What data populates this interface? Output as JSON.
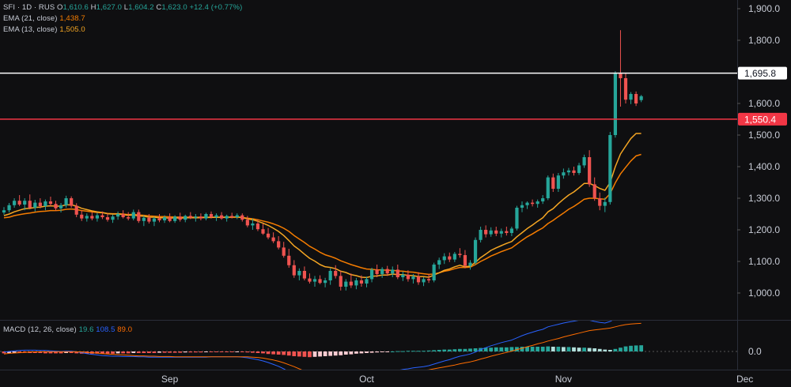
{
  "header": {
    "symbol": "SFI · 1D · RUS",
    "o_label": "O",
    "o": "1,610.6",
    "h_label": "H",
    "h": "1,627.0",
    "l_label": "L",
    "l": "1,604.2",
    "c_label": "C",
    "c": "1,623.0",
    "change": "+12.4 (+0.77%)"
  },
  "ema21": {
    "label": "EMA (21, close)",
    "value": "1,438.7"
  },
  "ema13": {
    "label": "EMA (13, close)",
    "value": "1,505.0"
  },
  "macd": {
    "label": "MACD (12, 26, close)",
    "hist": "19.6",
    "macd": "108.5",
    "signal": "89.0",
    "zero_label": "0.0"
  },
  "colors": {
    "up": "#26a69a",
    "down": "#ef5350",
    "ema21": "#f57c00",
    "ema13": "#f5a623",
    "macd_line": "#2962ff",
    "signal_line": "#ff6d00",
    "white_line": "#ffffff",
    "red_line": "#f23645"
  },
  "chart_data": {
    "type": "candlestick",
    "y_ticks": [
      "1,900.0",
      "1,800.0",
      "1,700.0",
      "1,600.0",
      "1,500.0",
      "1,400.0",
      "1,300.0",
      "1,200.0",
      "1,100.0",
      "1,000.0"
    ],
    "y_tick_values": [
      1900,
      1800,
      1700,
      1600,
      1500,
      1400,
      1300,
      1200,
      1100,
      1000
    ],
    "x_ticks": [
      {
        "label": "Sep",
        "candle_index": 32
      },
      {
        "label": "Oct",
        "candle_index": 70
      },
      {
        "label": "Nov",
        "candle_index": 108
      },
      {
        "label": "Dec",
        "candle_index": 143
      }
    ],
    "hlines": [
      {
        "value": 1695.8,
        "label": "1,695.8",
        "color": "#ffffff"
      },
      {
        "value": 1550.4,
        "label": "1,550.4",
        "color": "#f23645"
      }
    ],
    "ohlc": [
      [
        1255,
        1272,
        1248,
        1262
      ],
      [
        1262,
        1285,
        1255,
        1278
      ],
      [
        1278,
        1300,
        1270,
        1292
      ],
      [
        1292,
        1310,
        1275,
        1280
      ],
      [
        1280,
        1300,
        1262,
        1292
      ],
      [
        1292,
        1312,
        1265,
        1270
      ],
      [
        1270,
        1295,
        1258,
        1286
      ],
      [
        1286,
        1300,
        1268,
        1275
      ],
      [
        1275,
        1296,
        1262,
        1290
      ],
      [
        1290,
        1305,
        1275,
        1282
      ],
      [
        1282,
        1292,
        1260,
        1268
      ],
      [
        1268,
        1285,
        1255,
        1278
      ],
      [
        1278,
        1308,
        1270,
        1300
      ],
      [
        1300,
        1306,
        1270,
        1276
      ],
      [
        1276,
        1284,
        1240,
        1248
      ],
      [
        1248,
        1262,
        1228,
        1236
      ],
      [
        1236,
        1252,
        1226,
        1244
      ],
      [
        1244,
        1256,
        1230,
        1236
      ],
      [
        1236,
        1254,
        1226,
        1246
      ],
      [
        1246,
        1258,
        1234,
        1240
      ],
      [
        1240,
        1252,
        1226,
        1232
      ],
      [
        1232,
        1248,
        1222,
        1242
      ],
      [
        1242,
        1258,
        1232,
        1250
      ],
      [
        1250,
        1262,
        1236,
        1240
      ],
      [
        1240,
        1256,
        1230,
        1236
      ],
      [
        1236,
        1264,
        1230,
        1256
      ],
      [
        1256,
        1264,
        1222,
        1228
      ],
      [
        1228,
        1246,
        1212,
        1238
      ],
      [
        1238,
        1250,
        1220,
        1226
      ],
      [
        1226,
        1242,
        1212,
        1236
      ],
      [
        1236,
        1250,
        1224,
        1230
      ],
      [
        1230,
        1246,
        1222,
        1240
      ],
      [
        1240,
        1252,
        1224,
        1228
      ],
      [
        1228,
        1246,
        1222,
        1242
      ],
      [
        1242,
        1254,
        1226,
        1232
      ],
      [
        1232,
        1248,
        1224,
        1244
      ],
      [
        1244,
        1256,
        1234,
        1238
      ],
      [
        1238,
        1250,
        1226,
        1242
      ],
      [
        1242,
        1252,
        1230,
        1236
      ],
      [
        1236,
        1254,
        1230,
        1250
      ],
      [
        1250,
        1258,
        1236,
        1240
      ],
      [
        1240,
        1252,
        1228,
        1246
      ],
      [
        1246,
        1256,
        1232,
        1236
      ],
      [
        1236,
        1248,
        1226,
        1244
      ],
      [
        1244,
        1254,
        1236,
        1240
      ],
      [
        1240,
        1252,
        1234,
        1246
      ],
      [
        1246,
        1252,
        1226,
        1232
      ],
      [
        1232,
        1244,
        1208,
        1214
      ],
      [
        1214,
        1236,
        1200,
        1220
      ],
      [
        1220,
        1232,
        1196,
        1202
      ],
      [
        1202,
        1220,
        1184,
        1188
      ],
      [
        1188,
        1206,
        1170,
        1176
      ],
      [
        1176,
        1192,
        1158,
        1164
      ],
      [
        1164,
        1180,
        1138,
        1144
      ],
      [
        1144,
        1162,
        1112,
        1118
      ],
      [
        1118,
        1140,
        1080,
        1088
      ],
      [
        1088,
        1104,
        1048,
        1056
      ],
      [
        1056,
        1078,
        1040,
        1070
      ],
      [
        1070,
        1084,
        1040,
        1046
      ],
      [
        1046,
        1062,
        1030,
        1036
      ],
      [
        1036,
        1054,
        1020,
        1044
      ],
      [
        1044,
        1056,
        1028,
        1032
      ],
      [
        1032,
        1048,
        1018,
        1040
      ],
      [
        1040,
        1078,
        1026,
        1070
      ],
      [
        1070,
        1088,
        1046,
        1054
      ],
      [
        1054,
        1070,
        1008,
        1020
      ],
      [
        1020,
        1044,
        1008,
        1036
      ],
      [
        1036,
        1062,
        1016,
        1024
      ],
      [
        1024,
        1048,
        1012,
        1040
      ],
      [
        1040,
        1056,
        1020,
        1030
      ],
      [
        1030,
        1052,
        1018,
        1044
      ],
      [
        1044,
        1080,
        1034,
        1074
      ],
      [
        1074,
        1090,
        1050,
        1060
      ],
      [
        1060,
        1082,
        1048,
        1076
      ],
      [
        1076,
        1086,
        1054,
        1062
      ],
      [
        1062,
        1084,
        1050,
        1074
      ],
      [
        1074,
        1090,
        1044,
        1050
      ],
      [
        1050,
        1068,
        1038,
        1058
      ],
      [
        1058,
        1072,
        1036,
        1044
      ],
      [
        1044,
        1060,
        1030,
        1052
      ],
      [
        1052,
        1066,
        1026,
        1034
      ],
      [
        1034,
        1050,
        1022,
        1044
      ],
      [
        1044,
        1060,
        1032,
        1040
      ],
      [
        1040,
        1096,
        1034,
        1090
      ],
      [
        1090,
        1112,
        1076,
        1104
      ],
      [
        1104,
        1126,
        1092,
        1116
      ],
      [
        1116,
        1128,
        1098,
        1106
      ],
      [
        1106,
        1130,
        1098,
        1124
      ],
      [
        1124,
        1142,
        1112,
        1120
      ],
      [
        1120,
        1136,
        1078,
        1086
      ],
      [
        1086,
        1104,
        1074,
        1096
      ],
      [
        1096,
        1176,
        1090,
        1168
      ],
      [
        1168,
        1210,
        1160,
        1200
      ],
      [
        1200,
        1214,
        1176,
        1186
      ],
      [
        1186,
        1208,
        1178,
        1198
      ],
      [
        1198,
        1210,
        1180,
        1188
      ],
      [
        1188,
        1204,
        1176,
        1196
      ],
      [
        1196,
        1210,
        1182,
        1190
      ],
      [
        1190,
        1210,
        1180,
        1204
      ],
      [
        1204,
        1276,
        1198,
        1270
      ],
      [
        1270,
        1290,
        1256,
        1278
      ],
      [
        1278,
        1290,
        1266,
        1286
      ],
      [
        1286,
        1296,
        1274,
        1282
      ],
      [
        1282,
        1296,
        1270,
        1290
      ],
      [
        1290,
        1310,
        1282,
        1300
      ],
      [
        1300,
        1372,
        1294,
        1366
      ],
      [
        1366,
        1378,
        1320,
        1330
      ],
      [
        1330,
        1380,
        1320,
        1372
      ],
      [
        1372,
        1394,
        1362,
        1382
      ],
      [
        1382,
        1396,
        1372,
        1388
      ],
      [
        1388,
        1400,
        1372,
        1380
      ],
      [
        1380,
        1412,
        1374,
        1404
      ],
      [
        1404,
        1438,
        1396,
        1430
      ],
      [
        1430,
        1452,
        1336,
        1344
      ],
      [
        1344,
        1366,
        1292,
        1300
      ],
      [
        1300,
        1318,
        1262,
        1276
      ],
      [
        1276,
        1302,
        1256,
        1288
      ],
      [
        1288,
        1510,
        1280,
        1500
      ],
      [
        1500,
        1702,
        1492,
        1694
      ],
      [
        1694,
        1832,
        1590,
        1680
      ],
      [
        1680,
        1696,
        1600,
        1612
      ],
      [
        1612,
        1636,
        1598,
        1630
      ],
      [
        1630,
        1638,
        1592,
        1600
      ],
      [
        1610.6,
        1627.0,
        1604.2,
        1623.0
      ]
    ],
    "ema21": [
      1238,
      1240,
      1245,
      1248,
      1251,
      1253,
      1256,
      1258,
      1259,
      1261,
      1261,
      1262,
      1265,
      1266,
      1264,
      1261,
      1259,
      1257,
      1255,
      1254,
      1252,
      1251,
      1251,
      1250,
      1248,
      1249,
      1247,
      1246,
      1244,
      1243,
      1242,
      1242,
      1241,
      1241,
      1240,
      1240,
      1240,
      1240,
      1240,
      1240,
      1240,
      1240,
      1240,
      1240,
      1240,
      1240,
      1239,
      1237,
      1235,
      1232,
      1228,
      1224,
      1219,
      1213,
      1205,
      1195,
      1182,
      1171,
      1160,
      1148,
      1139,
      1129,
      1121,
      1116,
      1110,
      1102,
      1096,
      1090,
      1085,
      1080,
      1076,
      1075,
      1073,
      1073,
      1072,
      1072,
      1070,
      1069,
      1067,
      1066,
      1063,
      1061,
      1059,
      1060,
      1064,
      1069,
      1072,
      1077,
      1081,
      1081,
      1082,
      1090,
      1100,
      1108,
      1117,
      1124,
      1131,
      1137,
      1143,
      1155,
      1167,
      1178,
      1187,
      1197,
      1206,
      1220,
      1230,
      1242,
      1253,
      1265,
      1274,
      1285,
      1297,
      1300,
      1300,
      1298,
      1297,
      1315,
      1349,
      1377,
      1398,
      1418,
      1434,
      1438.7
    ],
    "ema13": [
      1245,
      1250,
      1257,
      1262,
      1267,
      1268,
      1271,
      1272,
      1275,
      1276,
      1275,
      1275,
      1279,
      1279,
      1275,
      1268,
      1264,
      1260,
      1257,
      1255,
      1251,
      1250,
      1250,
      1248,
      1246,
      1247,
      1244,
      1243,
      1240,
      1240,
      1238,
      1238,
      1237,
      1238,
      1237,
      1238,
      1238,
      1238,
      1238,
      1239,
      1239,
      1240,
      1239,
      1240,
      1240,
      1241,
      1239,
      1235,
      1232,
      1227,
      1221,
      1214,
      1205,
      1195,
      1182,
      1166,
      1149,
      1137,
      1123,
      1110,
      1101,
      1090,
      1083,
      1081,
      1077,
      1069,
      1065,
      1058,
      1055,
      1050,
      1049,
      1053,
      1054,
      1057,
      1057,
      1060,
      1058,
      1058,
      1056,
      1055,
      1052,
      1052,
      1050,
      1057,
      1064,
      1072,
      1076,
      1083,
      1088,
      1083,
      1085,
      1097,
      1112,
      1123,
      1135,
      1143,
      1150,
      1157,
      1163,
      1178,
      1191,
      1204,
      1215,
      1227,
      1238,
      1257,
      1267,
      1283,
      1297,
      1310,
      1320,
      1333,
      1347,
      1347,
      1340,
      1331,
      1325,
      1350,
      1400,
      1440,
      1465,
      1489,
      1505,
      1505.0
    ],
    "macd_hist": [
      -6,
      -5,
      -4,
      -4,
      -4,
      -5,
      -5,
      -5,
      -6,
      -6,
      -6,
      -6,
      -5,
      -5,
      -6,
      -7,
      -7,
      -7,
      -7,
      -7,
      -7,
      -7,
      -6,
      -6,
      -6,
      -5,
      -5,
      -5,
      -5,
      -5,
      -4,
      -4,
      -4,
      -4,
      -4,
      -3,
      -3,
      -3,
      -3,
      -2,
      -2,
      -2,
      -2,
      -2,
      -2,
      -1,
      -2,
      -3,
      -4,
      -5,
      -6,
      -8,
      -9,
      -10,
      -11,
      -13,
      -15,
      -16,
      -17,
      -18,
      -17,
      -16,
      -15,
      -14,
      -13,
      -12,
      -10,
      -9,
      -7,
      -6,
      -5,
      -4,
      -3,
      -2,
      -1,
      0,
      1,
      1,
      2,
      2,
      2,
      2,
      3,
      4,
      5,
      6,
      6,
      7,
      8,
      8,
      9,
      10,
      11,
      12,
      12,
      13,
      13,
      13,
      14,
      14,
      15,
      15,
      15,
      15,
      15,
      16,
      15,
      15,
      14,
      14,
      13,
      12,
      12,
      11,
      10,
      8,
      6,
      5,
      8,
      12,
      16,
      18,
      19,
      19.6
    ],
    "macd_line": [
      -2,
      0,
      2,
      3,
      4,
      4,
      4,
      3,
      3,
      2,
      1,
      0,
      1,
      1,
      -1,
      -4,
      -7,
      -9,
      -11,
      -13,
      -14,
      -15,
      -15,
      -16,
      -16,
      -16,
      -17,
      -17,
      -18,
      -18,
      -18,
      -18,
      -18,
      -18,
      -18,
      -18,
      -18,
      -18,
      -18,
      -18,
      -17,
      -17,
      -17,
      -17,
      -17,
      -17,
      -18,
      -20,
      -23,
      -26,
      -30,
      -35,
      -41,
      -47,
      -55,
      -64,
      -74,
      -80,
      -86,
      -92,
      -96,
      -99,
      -100,
      -99,
      -98,
      -98,
      -96,
      -94,
      -91,
      -88,
      -84,
      -79,
      -75,
      -71,
      -67,
      -63,
      -60,
      -57,
      -55,
      -52,
      -50,
      -48,
      -45,
      -40,
      -35,
      -30,
      -26,
      -20,
      -15,
      -12,
      -8,
      -2,
      6,
      12,
      18,
      23,
      28,
      32,
      36,
      43,
      50,
      56,
      61,
      66,
      70,
      78,
      82,
      86,
      90,
      93,
      96,
      99,
      102,
      99,
      95,
      92,
      90,
      95,
      104,
      109,
      110,
      110,
      109,
      108.5
    ],
    "macd_signal": [
      -8,
      -6,
      -5,
      -4,
      -3,
      -2,
      -2,
      -1,
      -1,
      -1,
      -1,
      -1,
      -1,
      -1,
      -1,
      -2,
      -3,
      -4,
      -5,
      -7,
      -8,
      -9,
      -10,
      -11,
      -12,
      -13,
      -14,
      -14,
      -15,
      -15,
      -16,
      -16,
      -16,
      -17,
      -17,
      -17,
      -17,
      -17,
      -17,
      -17,
      -17,
      -17,
      -17,
      -17,
      -17,
      -17,
      -17,
      -17,
      -18,
      -19,
      -21,
      -24,
      -27,
      -31,
      -36,
      -42,
      -48,
      -55,
      -62,
      -68,
      -74,
      -80,
      -85,
      -88,
      -91,
      -93,
      -94,
      -94,
      -93,
      -92,
      -90,
      -88,
      -85,
      -82,
      -79,
      -76,
      -73,
      -70,
      -67,
      -64,
      -62,
      -60,
      -58,
      -55,
      -52,
      -49,
      -46,
      -43,
      -39,
      -36,
      -33,
      -29,
      -24,
      -20,
      -15,
      -11,
      -7,
      -3,
      1,
      6,
      10,
      15,
      19,
      24,
      28,
      33,
      37,
      41,
      46,
      50,
      54,
      58,
      62,
      66,
      68,
      70,
      72,
      74,
      78,
      82,
      85,
      87,
      88,
      89.0
    ]
  }
}
